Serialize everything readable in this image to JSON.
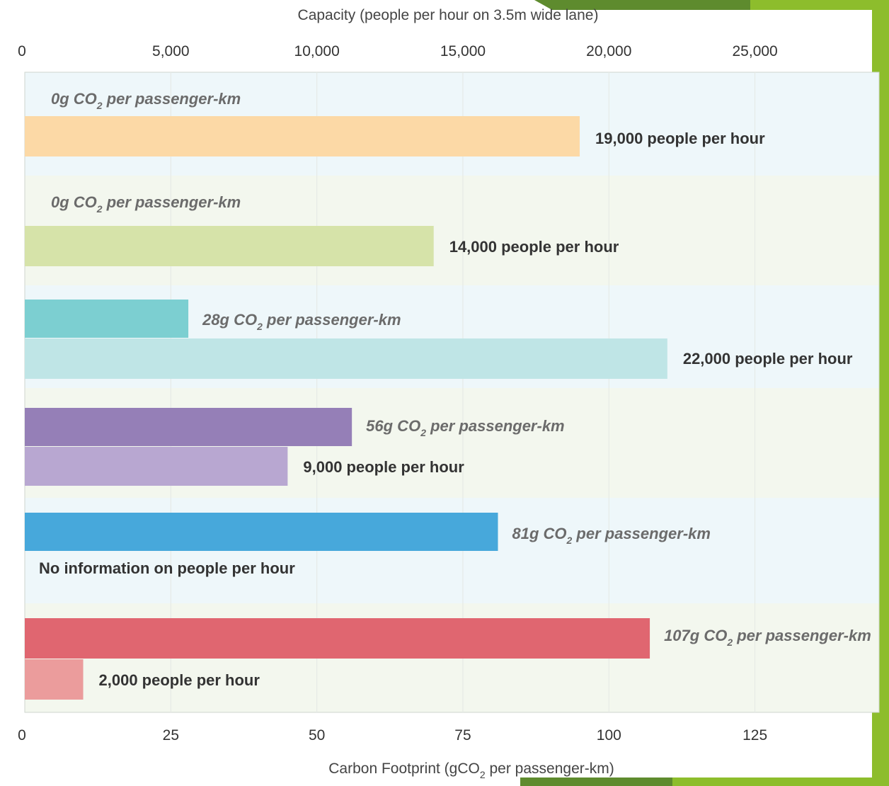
{
  "chart_data": {
    "type": "bar",
    "orientation": "horizontal",
    "top_axis": {
      "title": "Capacity (people per hour on 3.5m wide lane)",
      "range": [
        0,
        29250
      ],
      "ticks": [
        0,
        5000,
        10000,
        15000,
        20000,
        25000
      ],
      "tick_labels": [
        "0",
        "5,000",
        "10,000",
        "15,000",
        "20,000",
        "25,000"
      ]
    },
    "bottom_axis": {
      "title_pre": "Carbon Footprint (gCO",
      "title_sub": "2",
      "title_post": " per passenger-km)",
      "range": [
        0,
        146.25
      ],
      "ticks": [
        0,
        25,
        50,
        75,
        100,
        125
      ],
      "tick_labels": [
        "0",
        "25",
        "50",
        "75",
        "100",
        "125"
      ]
    },
    "grid": true,
    "groups": [
      {
        "band_color": "#eef7fa",
        "co2": {
          "value": 0,
          "pre": "0g CO",
          "sub": "2",
          "post": " per passenger-km",
          "color": null
        },
        "capacity": {
          "value": 19000,
          "label": "19,000 people per hour",
          "color": "#fcd9a6"
        }
      },
      {
        "band_color": "#f3f7ee",
        "co2": {
          "value": 0,
          "pre": "0g CO",
          "sub": "2",
          "post": " per passenger-km",
          "color": null
        },
        "capacity": {
          "value": 14000,
          "label": "14,000 people per hour",
          "color": "#d6e3a9"
        }
      },
      {
        "band_color": "#eef7fa",
        "co2": {
          "value": 28,
          "pre": "28g CO",
          "sub": "2",
          "post": " per passenger-km",
          "color": "#7ccfd1"
        },
        "capacity": {
          "value": 22000,
          "label": "22,000 people per hour",
          "color": "#bfe5e6"
        }
      },
      {
        "band_color": "#f3f7ee",
        "co2": {
          "value": 56,
          "pre": "56g CO",
          "sub": "2",
          "post": " per passenger-km",
          "color": "#957fb7"
        },
        "capacity": {
          "value": 9000,
          "label": "9,000 people per hour",
          "color": "#b8a7d1"
        }
      },
      {
        "band_color": "#eef7fa",
        "co2": {
          "value": 81,
          "pre": "81g CO",
          "sub": "2",
          "post": " per passenger-km",
          "color": "#47a8db"
        },
        "capacity": {
          "value": null,
          "label": "No information on people per hour",
          "color": null
        }
      },
      {
        "band_color": "#f3f7ee",
        "co2": {
          "value": 107,
          "pre": "107g CO",
          "sub": "2",
          "post": "  per passenger-km",
          "color": "#e06670"
        },
        "capacity": {
          "value": 2000,
          "label": "2,000 people per hour",
          "color": "#eb9c9c"
        }
      }
    ]
  },
  "decoration": {
    "accent_color": "#8dbd2c",
    "accent_dark": "#5e8b2e"
  }
}
